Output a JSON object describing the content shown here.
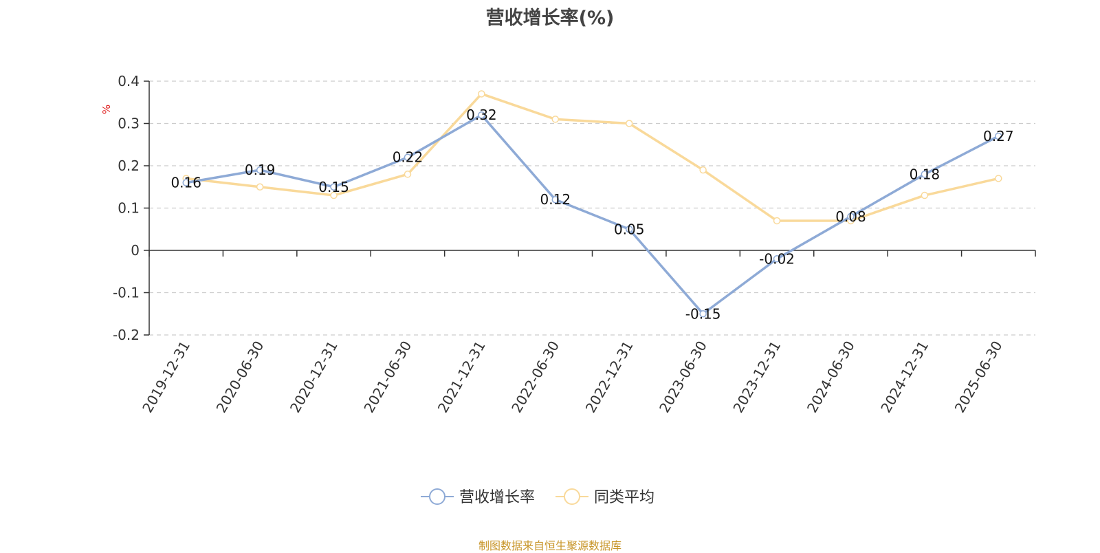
{
  "title": "营收增长率(%)",
  "source_note": "制图数据来自恒生聚源数据库",
  "colors": {
    "series1": "#8eaad6",
    "series2": "#f9d99a",
    "axis": "#333333",
    "grid": "#cccccc",
    "unit": "#e02020"
  },
  "chart_data": {
    "type": "line",
    "title": "营收增长率(%)",
    "ylabel": "%",
    "ylim": [
      -0.2,
      0.4
    ],
    "yticks": [
      -0.2,
      -0.1,
      0,
      0.1,
      0.2,
      0.3,
      0.4
    ],
    "grid": true,
    "legend_position": "bottom",
    "x": [
      "2019-12-31",
      "2020-06-30",
      "2020-12-31",
      "2021-06-30",
      "2021-12-31",
      "2022-06-30",
      "2022-12-31",
      "2023-06-30",
      "2023-12-31",
      "2024-06-30",
      "2024-12-31",
      "2025-06-30"
    ],
    "series": [
      {
        "name": "营收增长率",
        "values": [
          0.16,
          0.19,
          0.15,
          0.22,
          0.32,
          0.12,
          0.05,
          -0.15,
          -0.02,
          0.08,
          0.18,
          0.27
        ],
        "show_labels": true
      },
      {
        "name": "同类平均",
        "values": [
          0.17,
          0.15,
          0.13,
          0.18,
          0.37,
          0.31,
          0.3,
          0.19,
          0.07,
          0.07,
          0.13,
          0.17
        ],
        "show_labels": false
      }
    ]
  }
}
